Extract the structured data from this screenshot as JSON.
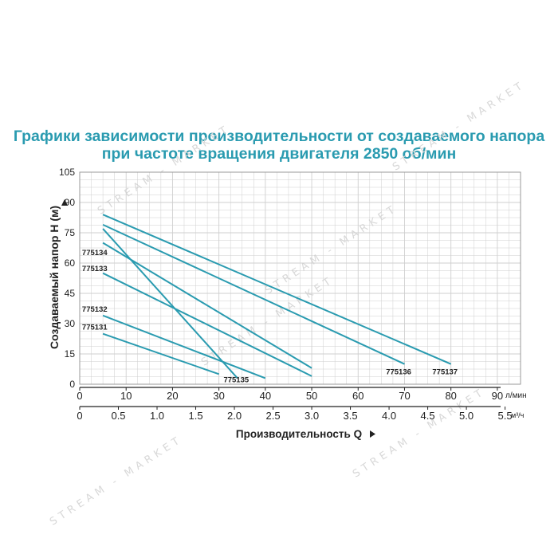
{
  "title_line1": "Графики зависимости производительности от создаваемого напора",
  "title_line2": "при частоте вращения двигателя 2850 об/мин",
  "watermark": "STREAM - MARKET",
  "colors": {
    "line": "#2a9bb0",
    "title": "#2a9bb0",
    "grid": "#cfcfcf",
    "axis": "#222222"
  },
  "chart_data": {
    "type": "line",
    "ylabel": "Создаваемый напор H (м)",
    "xlabel": "Производительность Q",
    "x_unit_top": "л/мин",
    "x_unit_bottom": "м³/ч",
    "ylim": [
      0,
      105
    ],
    "yticks": [
      0,
      15,
      30,
      45,
      60,
      75,
      90,
      105
    ],
    "xlim_lpm": [
      0,
      95
    ],
    "xticks_lpm": [
      0,
      10,
      20,
      30,
      40,
      50,
      60,
      70,
      80,
      90
    ],
    "xticks_m3h": [
      0,
      0.5,
      1.0,
      1.5,
      2.0,
      2.5,
      3.0,
      3.5,
      4.0,
      4.5,
      5.0,
      5.5
    ],
    "grid": true,
    "series": [
      {
        "name": "775131",
        "x": [
          5,
          30
        ],
        "y": [
          25,
          5
        ]
      },
      {
        "name": "775132",
        "x": [
          5,
          40
        ],
        "y": [
          34,
          3
        ]
      },
      {
        "name": "775133",
        "x": [
          5,
          50
        ],
        "y": [
          55,
          4
        ]
      },
      {
        "name": "775134",
        "x": [
          5,
          50
        ],
        "y": [
          70,
          8
        ]
      },
      {
        "name": "775135",
        "x": [
          5,
          34
        ],
        "y": [
          77,
          3
        ]
      },
      {
        "name": "775136",
        "x": [
          5,
          70
        ],
        "y": [
          79,
          10
        ]
      },
      {
        "name": "775137",
        "x": [
          5,
          80
        ],
        "y": [
          84,
          10
        ]
      }
    ],
    "labels": [
      {
        "text": "775134",
        "x": 0.5,
        "y": 64
      },
      {
        "text": "775133",
        "x": 0.5,
        "y": 56
      },
      {
        "text": "775132",
        "x": 0.5,
        "y": 36
      },
      {
        "text": "775131",
        "x": 0.5,
        "y": 27
      },
      {
        "text": "775135",
        "x": 31,
        "y": 1
      },
      {
        "text": "775136",
        "x": 66,
        "y": 5
      },
      {
        "text": "775137",
        "x": 76,
        "y": 5
      }
    ]
  }
}
